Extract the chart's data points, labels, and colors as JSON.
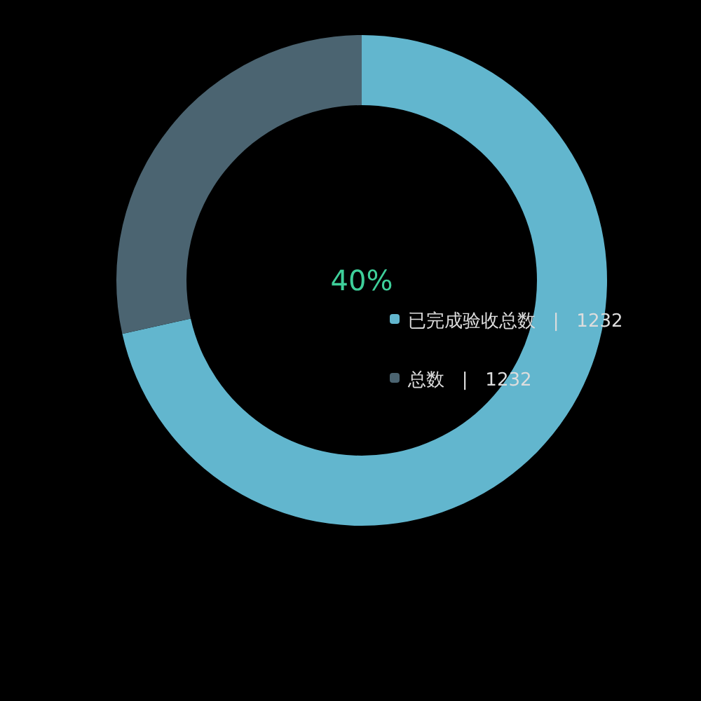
{
  "chart_data": {
    "type": "donut",
    "categories": [
      "已完成验收总数   |   1232",
      "总数   |   1232"
    ],
    "values": [
      71.5,
      28.5
    ],
    "colors": [
      "#62b6ce",
      "#4b6471"
    ],
    "legend": "right",
    "annotations": [
      "40%"
    ]
  }
}
